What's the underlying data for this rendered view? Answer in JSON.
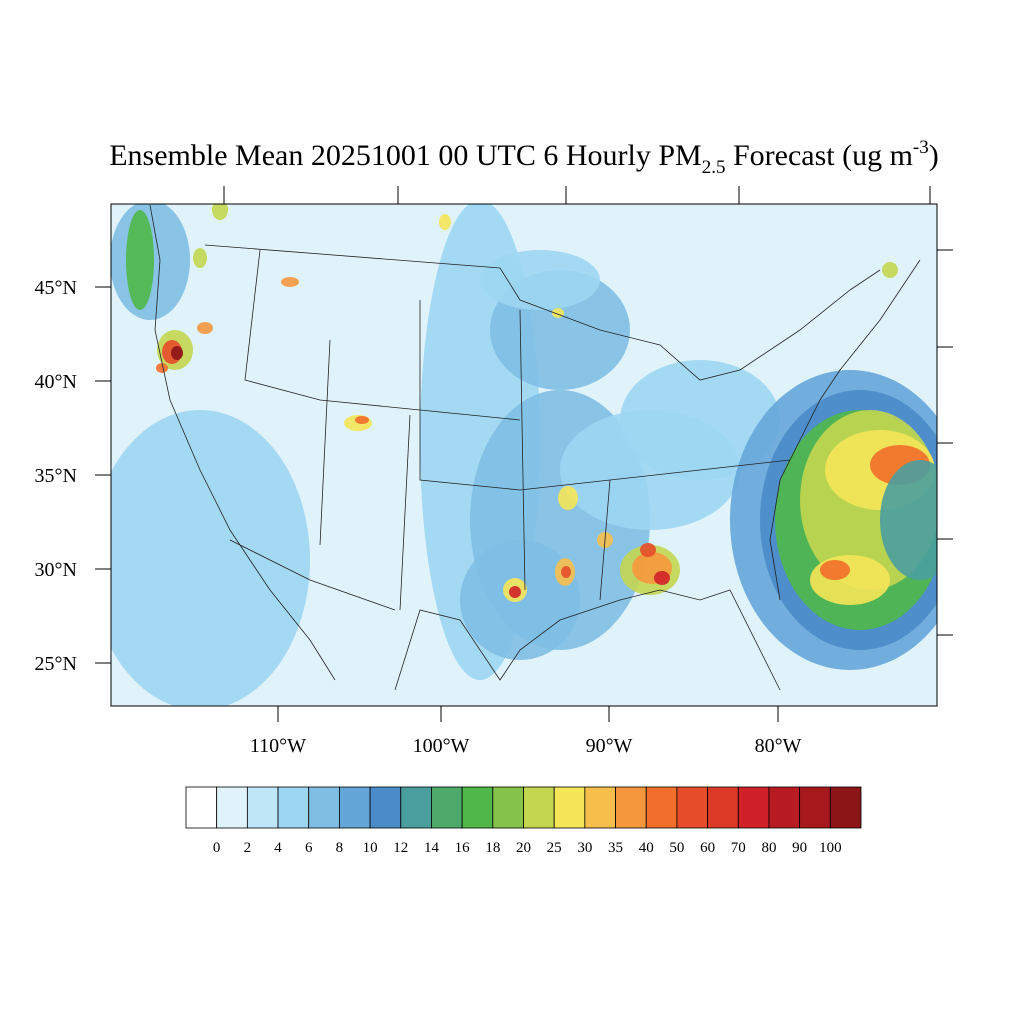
{
  "title": {
    "main": "Ensemble Mean 20251001 00 UTC 6 Hourly PM",
    "sub": "2.5",
    "after": " Forecast (ug m",
    "sup": "-3",
    "close": ")"
  },
  "lat_labels": [
    "45°N",
    "40°N",
    "35°N",
    "30°N",
    "25°N"
  ],
  "lon_labels": [
    "110°W",
    "100°W",
    "90°W",
    "80°W"
  ],
  "colorbar": {
    "levels": [
      0,
      2,
      4,
      6,
      8,
      10,
      12,
      14,
      16,
      18,
      20,
      25,
      30,
      35,
      40,
      50,
      60,
      70,
      80,
      90,
      100
    ],
    "colors": [
      "#ffffff",
      "#e0f3fb",
      "#bfe6f7",
      "#9dd6f2",
      "#80bfe4",
      "#65a6d9",
      "#4a8cc9",
      "#4a9e9e",
      "#4daa6a",
      "#4fb848",
      "#85c24a",
      "#c3d650",
      "#f5e658",
      "#f6bf4c",
      "#f5983d",
      "#f26e2b",
      "#e64d2a",
      "#dc3a27",
      "#d12128",
      "#b81c22",
      "#a5191d",
      "#8c1518"
    ]
  }
}
